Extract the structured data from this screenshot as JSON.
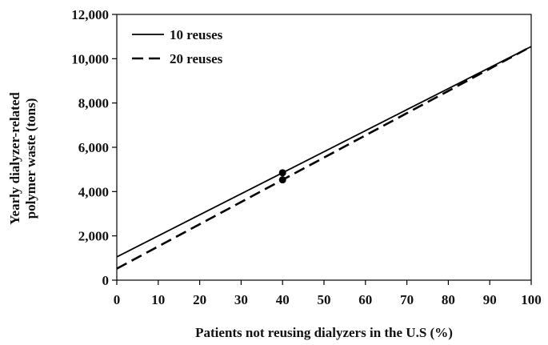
{
  "chart_data": {
    "type": "line",
    "title": "",
    "xlabel": "Patients not reusing dialyzers in the U.S (%)",
    "ylabel_lines": [
      "Yearly dialyzer-related",
      "polymer waste (tons)"
    ],
    "x": [
      0,
      100
    ],
    "xlim": [
      0,
      100
    ],
    "ylim": [
      0,
      12000
    ],
    "xticks": [
      0,
      10,
      20,
      30,
      40,
      50,
      60,
      70,
      80,
      90,
      100
    ],
    "yticks": [
      0,
      2000,
      4000,
      6000,
      8000,
      10000,
      12000
    ],
    "xtick_labels": [
      "0",
      "10",
      "20",
      "30",
      "40",
      "50",
      "60",
      "70",
      "80",
      "90",
      "100"
    ],
    "ytick_labels": [
      "0",
      "2,000",
      "4,000",
      "6,000",
      "8,000",
      "10,000",
      "12,000"
    ],
    "grid": false,
    "legend_position": "top-left",
    "series": [
      {
        "name": "10 reuses",
        "style": "solid",
        "color": "#000000",
        "x": [
          0,
          100
        ],
        "values": [
          1050,
          10550
        ]
      },
      {
        "name": "20 reuses",
        "style": "dashed",
        "color": "#000000",
        "x": [
          0,
          100
        ],
        "values": [
          520,
          10550
        ]
      }
    ],
    "markers": [
      {
        "series": "10 reuses",
        "x": 40,
        "y": 4850
      },
      {
        "series": "20 reuses",
        "x": 40,
        "y": 4530
      }
    ]
  }
}
